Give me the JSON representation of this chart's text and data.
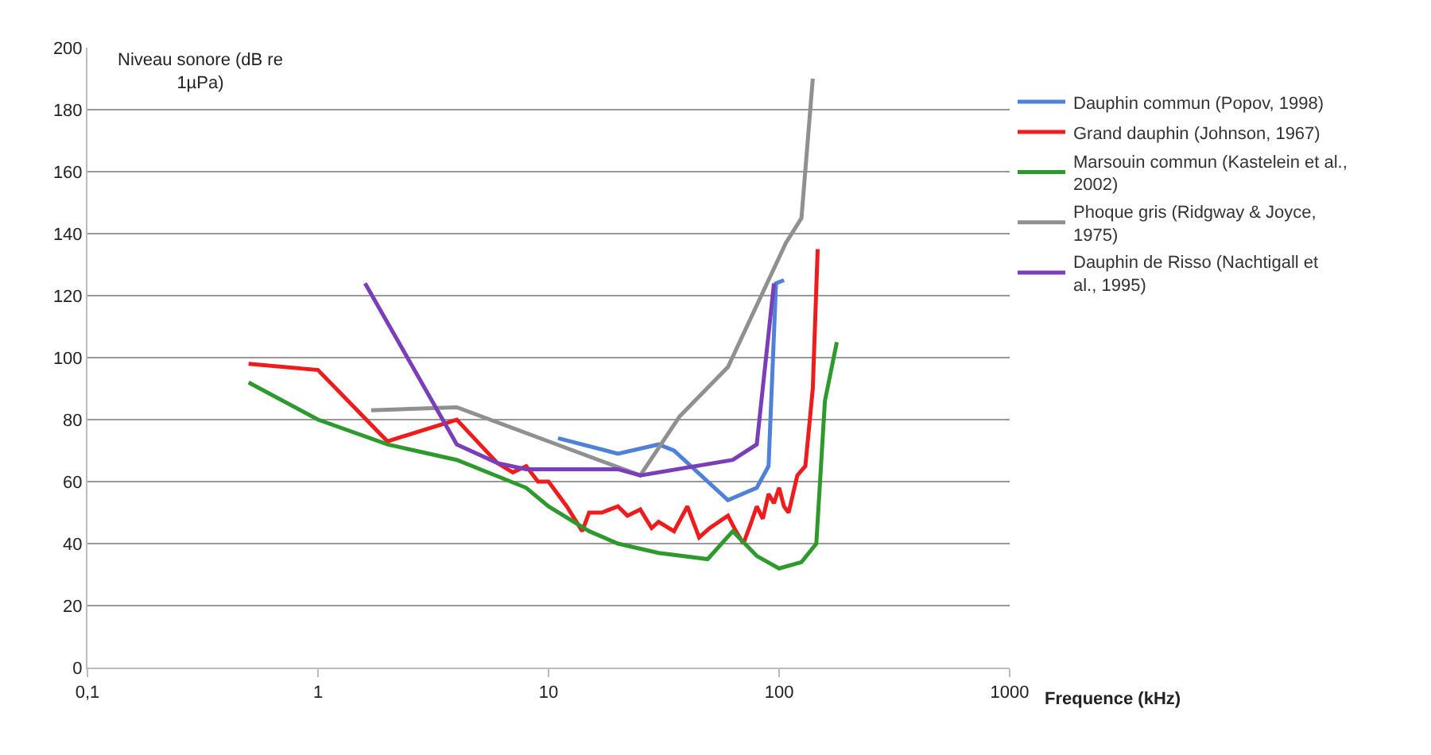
{
  "chart_data": {
    "type": "line",
    "xlabel": "Frequence (kHz)",
    "ylabel": "Niveau sonore (dB re 1µPa)",
    "log": "x",
    "grid": "y",
    "legend": "right",
    "marker": "none",
    "line_style": "solid",
    "xlim": [
      0.1,
      1000
    ],
    "xticks": [
      {
        "value": 0.1,
        "label": "0,1"
      },
      1,
      10,
      100,
      1000
    ],
    "ylim": [
      0,
      200
    ],
    "yticks": [
      0,
      20,
      40,
      60,
      80,
      100,
      120,
      140,
      160,
      180,
      200
    ],
    "series": [
      {
        "name": "Dauphin commun (Popov, 1998)",
        "color": "#4f81d9",
        "x": [
          11,
          20,
          30,
          35,
          60,
          80,
          90,
          97,
          105
        ],
        "values": [
          74,
          69,
          72,
          70,
          54,
          58,
          65,
          124,
          125
        ]
      },
      {
        "name": "Grand dauphin (Johnson, 1967)",
        "color": "#ee1c1c",
        "x": [
          0.5,
          1,
          2,
          4,
          6,
          7,
          8,
          9,
          10,
          12,
          14,
          15,
          17,
          20,
          22,
          25,
          28,
          30,
          35,
          40,
          45,
          50,
          60,
          65,
          70,
          75,
          80,
          85,
          90,
          95,
          100,
          105,
          110,
          120,
          130,
          140,
          147
        ],
        "values": [
          98,
          96,
          73,
          80,
          66,
          63,
          65,
          60,
          60,
          52,
          44,
          50,
          50,
          52,
          49,
          51,
          45,
          47,
          44,
          52,
          42,
          45,
          49,
          44,
          40,
          46,
          52,
          48,
          56,
          53,
          58,
          52,
          50,
          62,
          65,
          90,
          135
        ]
      },
      {
        "name": "Marsouin commun (Kastelein et al., 2002)",
        "color": "#2e9a2e",
        "x": [
          0.5,
          1,
          2,
          4,
          8,
          10,
          15,
          20,
          30,
          49,
          63,
          80,
          100,
          125,
          145,
          158,
          178
        ],
        "values": [
          92,
          80,
          72,
          67,
          58,
          52,
          44,
          40,
          37,
          35,
          44,
          36,
          32,
          34,
          40,
          86,
          105
        ]
      },
      {
        "name": "Phoque gris (Ridgway & Joyce, 1975)",
        "color": "#909090",
        "x": [
          1.7,
          4,
          25,
          37,
          60,
          107,
          125,
          140
        ],
        "values": [
          83,
          84,
          62,
          81,
          97,
          137,
          145,
          190
        ]
      },
      {
        "name": "Dauphin de Risso (Nachtigall et al., 1995)",
        "color": "#7a3fb8",
        "x": [
          1.6,
          4,
          6,
          8,
          20,
          25,
          63,
          80,
          95
        ],
        "values": [
          124,
          72,
          66,
          64,
          64,
          62,
          67,
          72,
          124
        ]
      }
    ]
  }
}
